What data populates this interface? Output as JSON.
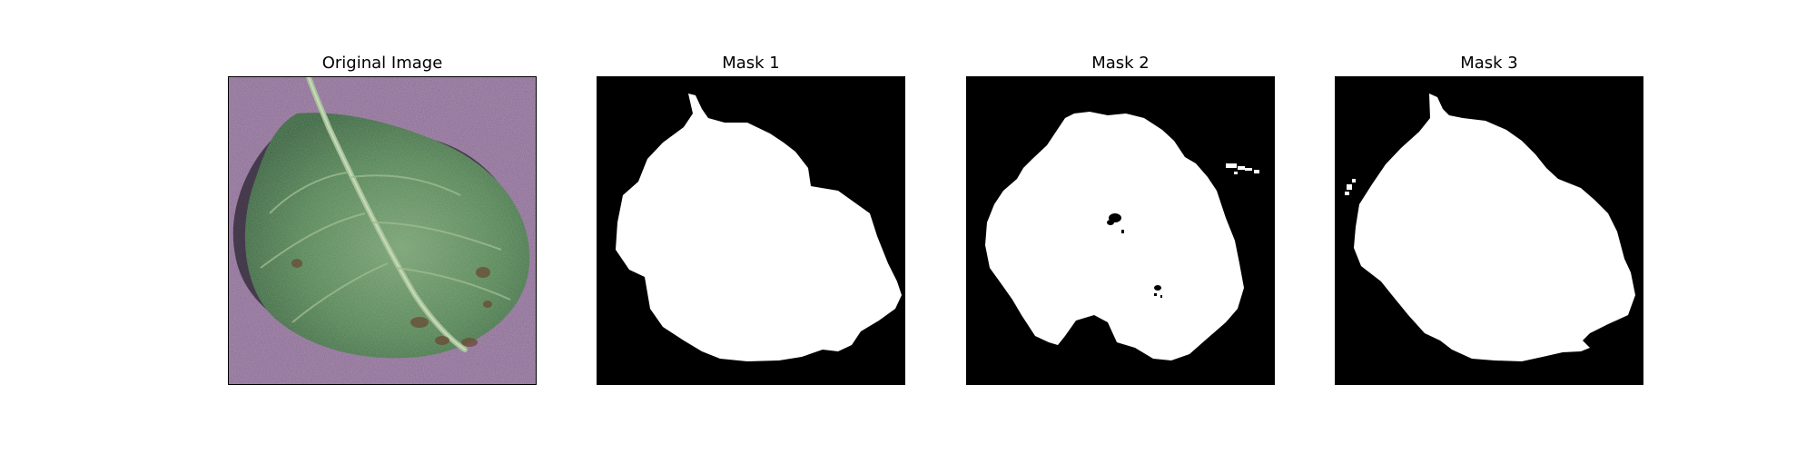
{
  "figure": {
    "panels": [
      {
        "title": "Original Image",
        "kind": "photo"
      },
      {
        "title": "Mask 1",
        "kind": "mask"
      },
      {
        "title": "Mask 2",
        "kind": "mask"
      },
      {
        "title": "Mask 3",
        "kind": "mask"
      }
    ]
  },
  "colors": {
    "background": "#ffffff",
    "text": "#000000",
    "mask_background": "#000000",
    "mask_foreground": "#ffffff",
    "photo_background": "#8a6a92",
    "leaf_dark": "#2e5a34",
    "leaf_mid": "#4a7c4a",
    "leaf_light": "#7fa07a",
    "leaf_vein": "#a8c39a",
    "leaf_spot": "#6b4a34"
  }
}
